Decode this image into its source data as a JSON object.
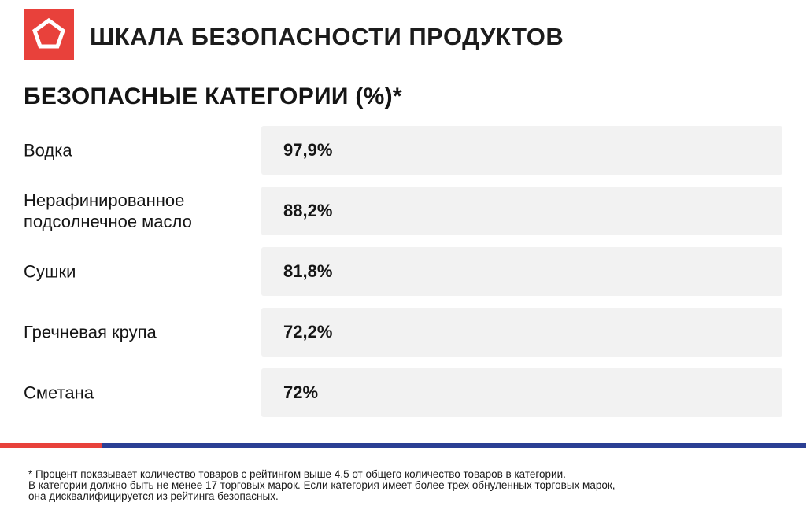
{
  "header": {
    "title": "ШКАЛА БЕЗОПАСНОСТИ ПРОДУКТОВ",
    "logo_icon": "pentagon-icon"
  },
  "colors": {
    "brand_red": "#e8413b",
    "stripe_blue": "#2b3f94",
    "cell_bg": "#f2f2f2"
  },
  "chart_data": {
    "type": "table",
    "title": "БЕЗОПАСНЫЕ КАТЕГОРИИ (%)*",
    "rows": [
      {
        "label": "Водка",
        "value": 97.9,
        "display": "97,9%"
      },
      {
        "label": "Нерафинированное подсолнечное масло",
        "value": 88.2,
        "display": "88,2%"
      },
      {
        "label": "Сушки",
        "value": 81.8,
        "display": "81,8%"
      },
      {
        "label": "Гречневая крупа",
        "value": 72.2,
        "display": "72,2%"
      },
      {
        "label": "Сметана",
        "value": 72,
        "display": "72%"
      }
    ]
  },
  "footnote": {
    "lines": [
      "* Процент показывает количество товаров с рейтингом выше 4,5 от общего количество товаров в категории.",
      "В категории должно быть не менее 17 торговых марок. Если категория имеет более трех обнуленных торговых марок,",
      "она дисквалифицируется из рейтинга безопасных."
    ]
  }
}
